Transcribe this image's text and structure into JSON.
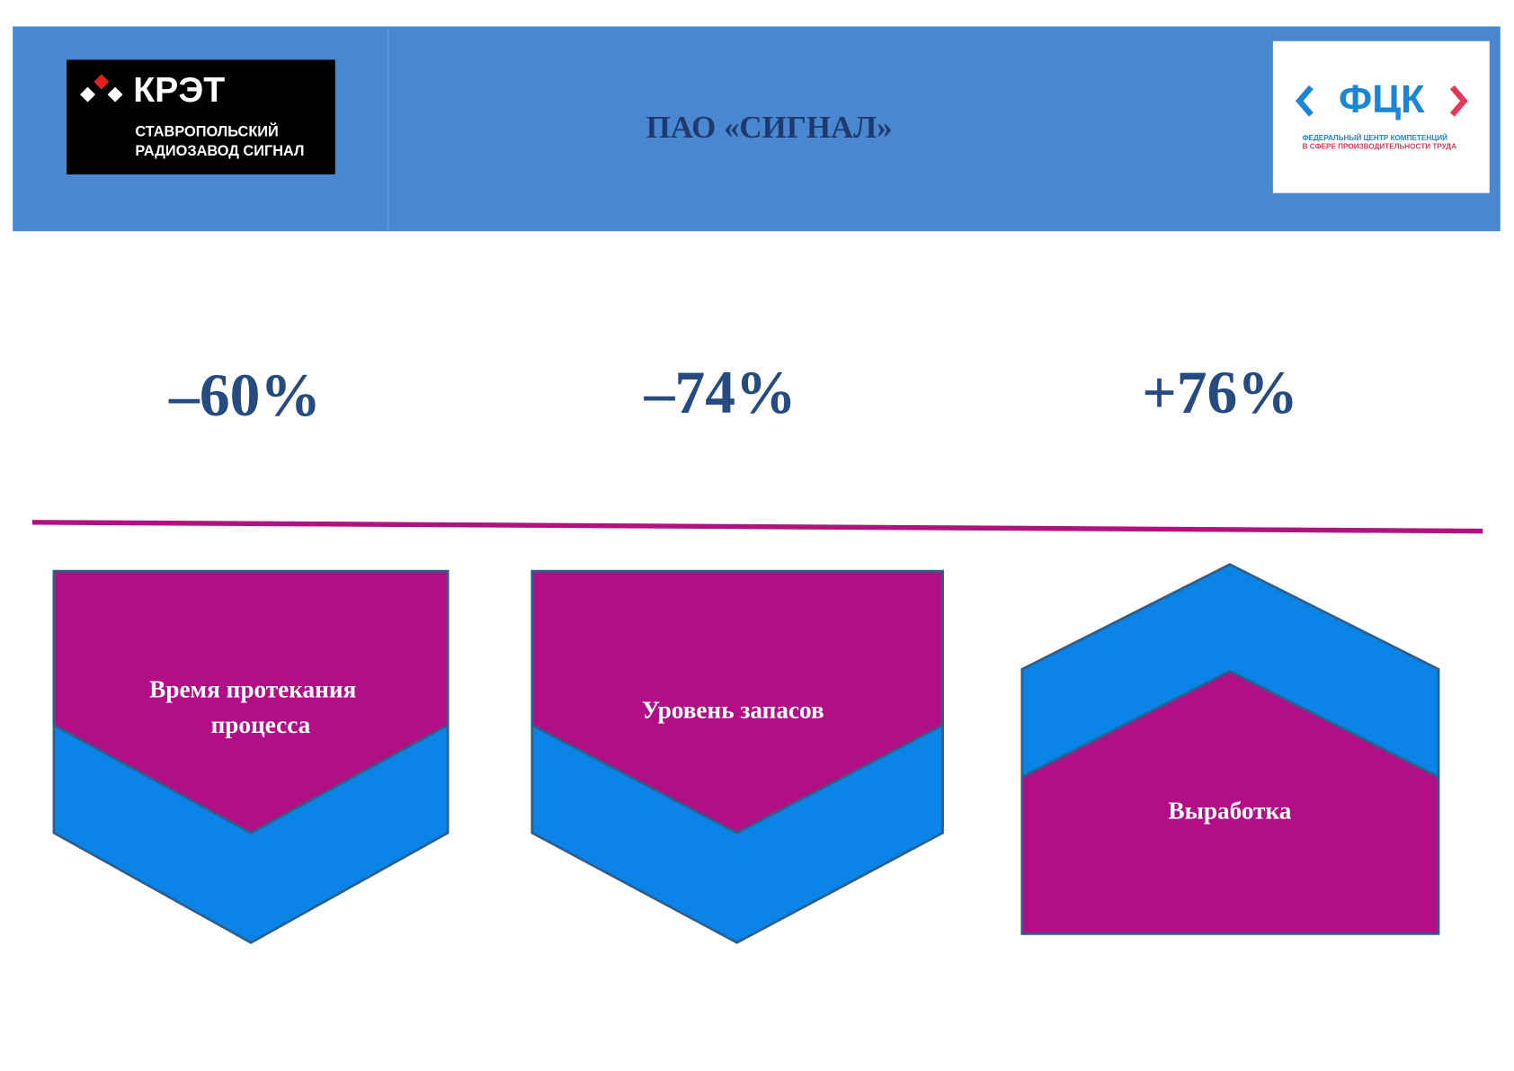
{
  "header": {
    "title": "ПАО «СИГНАЛ»",
    "left_logo": {
      "brand": "КРЭТ",
      "line1": "СТАВРОПОЛЬСКИЙ",
      "line2": "РАДИОЗАВОД СИГНАЛ"
    },
    "right_logo": {
      "brand": "ФЦК",
      "line1": "ФЕДЕРАЛЬНЫЙ ЦЕНТР КОМПЕТЕНЦИЙ",
      "line2": "В СФЕРЕ ПРОИЗВОДИТЕЛЬНОСТИ ТРУДА"
    }
  },
  "metrics": [
    {
      "value": "–60%",
      "label": [
        "Время протекания",
        "процесса"
      ]
    },
    {
      "value": "–74%",
      "label": [
        "Уровень запасов"
      ]
    },
    {
      "value": "+76%",
      "label": [
        "Выработка"
      ]
    }
  ]
}
